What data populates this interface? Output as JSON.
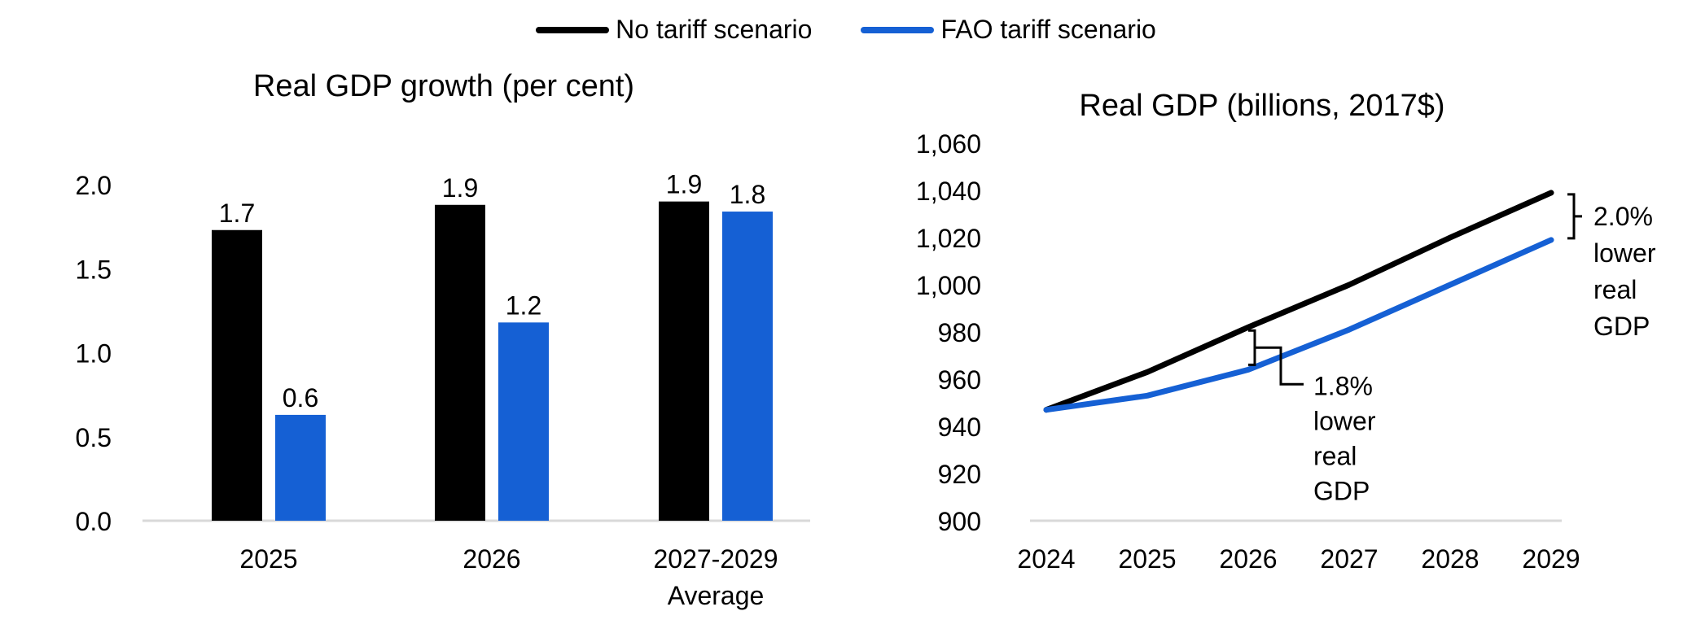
{
  "legend": [
    {
      "label": "No tariff scenario",
      "color": "#000000"
    },
    {
      "label": "FAO tariff scenario",
      "color": "#1560d4"
    }
  ],
  "chart_data": [
    {
      "type": "bar",
      "title": "Real GDP growth (per cent)",
      "categories": [
        [
          "2025"
        ],
        [
          "2026"
        ],
        [
          "2027-2029",
          "Average"
        ]
      ],
      "series": [
        {
          "name": "No tariff scenario",
          "color": "#000000",
          "values": [
            1.73,
            1.88,
            1.9
          ],
          "labels": [
            "1.7",
            "1.9",
            "1.9"
          ]
        },
        {
          "name": "FAO tariff scenario",
          "color": "#1560d4",
          "values": [
            0.63,
            1.18,
            1.84
          ],
          "labels": [
            "0.6",
            "1.2",
            "1.8"
          ]
        }
      ],
      "ylim": [
        0,
        2.0
      ],
      "yticks": [
        "0.0",
        "0.5",
        "1.0",
        "1.5",
        "2.0"
      ],
      "ytick_values": [
        0,
        0.5,
        1.0,
        1.5,
        2.0
      ],
      "grid": false
    },
    {
      "type": "line",
      "title": "Real GDP (billions, 2017$)",
      "x": [
        "2024",
        "2025",
        "2026",
        "2027",
        "2028",
        "2029"
      ],
      "series": [
        {
          "name": "No tariff scenario",
          "color": "#000000",
          "values": [
            947,
            963,
            982,
            1000,
            1020,
            1039
          ]
        },
        {
          "name": "FAO tariff scenario",
          "color": "#1560d4",
          "values": [
            947,
            953,
            964,
            981,
            1000,
            1019
          ]
        }
      ],
      "ylim": [
        900,
        1060
      ],
      "yticks": [
        "900",
        "920",
        "940",
        "960",
        "980",
        "1,000",
        "1,020",
        "1,040",
        "1,060"
      ],
      "ytick_values": [
        900,
        920,
        940,
        960,
        980,
        1000,
        1020,
        1040,
        1060
      ],
      "grid": false,
      "annotations": [
        {
          "text": [
            "1.8%",
            "lower",
            "real",
            "GDP"
          ],
          "x": "2026"
        },
        {
          "text": [
            "2.0%",
            "lower",
            "real",
            "GDP"
          ],
          "x": "2029"
        }
      ]
    }
  ]
}
